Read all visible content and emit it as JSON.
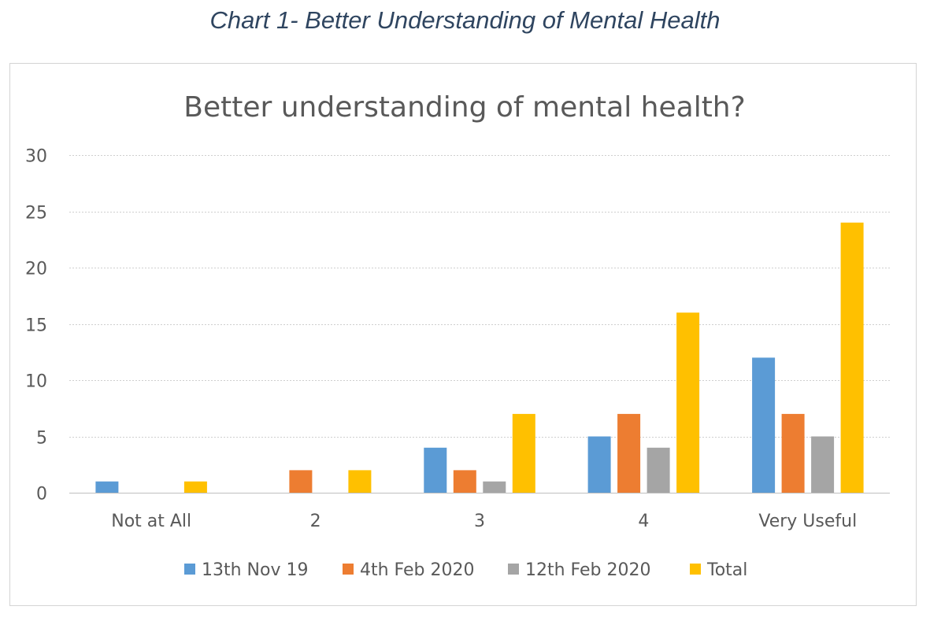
{
  "page": {
    "caption": "Chart 1- Better Understanding of Mental Health"
  },
  "chart_data": {
    "type": "bar",
    "title": "Better understanding of mental health?",
    "xlabel": "",
    "ylabel": "",
    "categories": [
      "Not at All",
      "2",
      "3",
      "4",
      "Very Useful"
    ],
    "ylim": [
      0,
      30
    ],
    "yticks": [
      0,
      5,
      10,
      15,
      20,
      25,
      30
    ],
    "grid": true,
    "legend_position": "bottom",
    "series": [
      {
        "name": "13th Nov 19",
        "color": "#5b9bd5",
        "values": [
          1,
          0,
          4,
          5,
          12
        ]
      },
      {
        "name": "4th Feb 2020",
        "color": "#ed7d31",
        "values": [
          0,
          2,
          2,
          7,
          7
        ]
      },
      {
        "name": "12th Feb 2020",
        "color": "#a5a5a5",
        "values": [
          0,
          0,
          1,
          4,
          5
        ]
      },
      {
        "name": "Total",
        "color": "#ffc000",
        "values": [
          1,
          2,
          7,
          16,
          24
        ]
      }
    ]
  }
}
